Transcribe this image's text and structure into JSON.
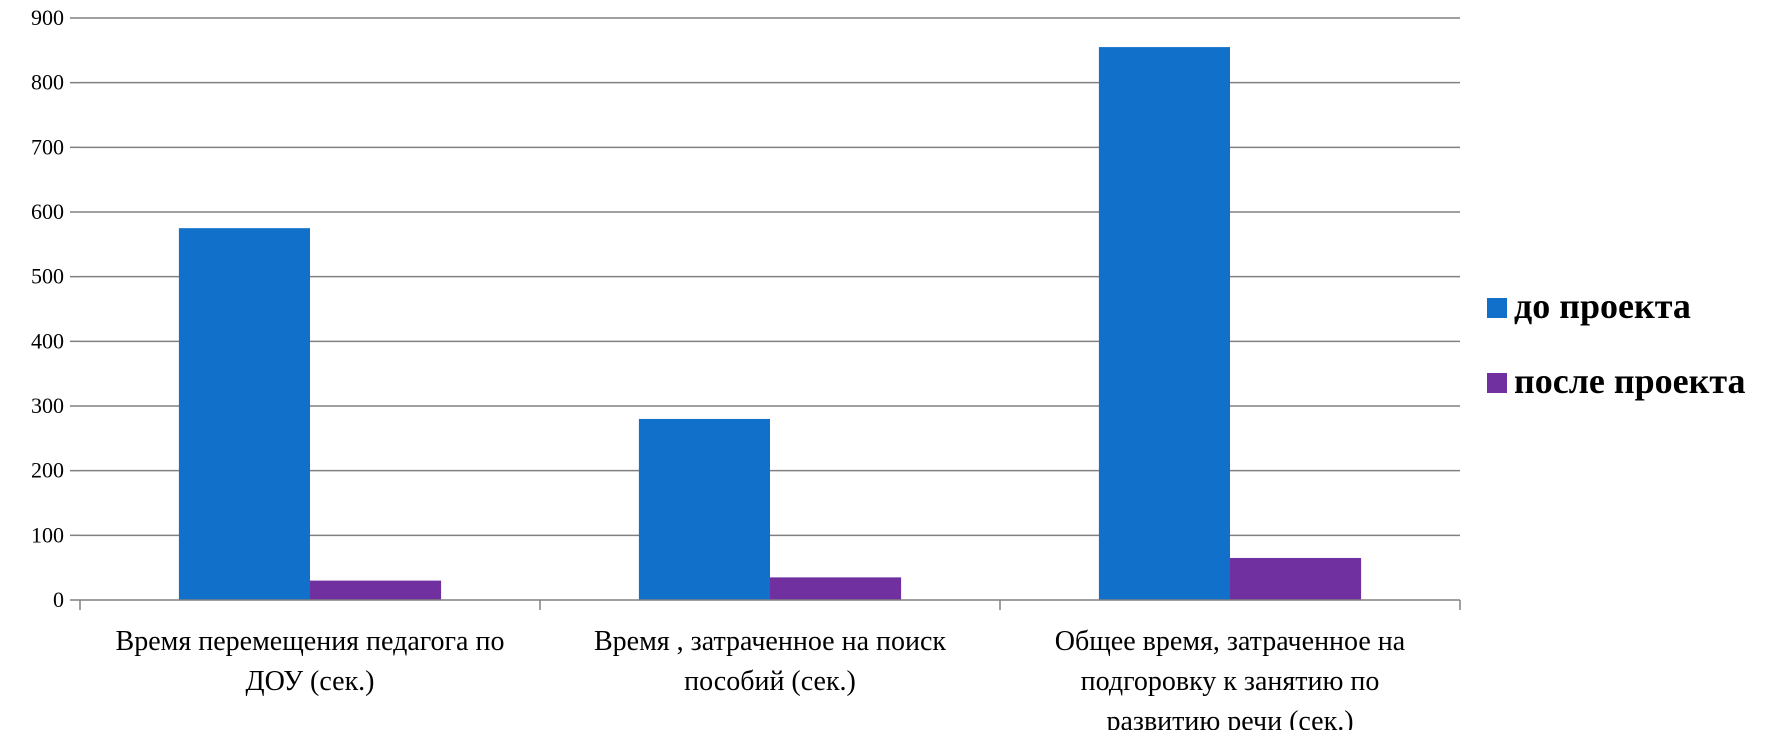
{
  "chart_data": {
    "type": "bar",
    "categories": [
      [
        "Время перемещения педагога по",
        "ДОУ (сек.)"
      ],
      [
        "Время , затраченное на поиск",
        "пособий (сек.)"
      ],
      [
        "Общее время, затраченное на",
        "подгоровку к занятию по",
        "развитию речи (сек.)"
      ]
    ],
    "series": [
      {
        "name": "до проекта",
        "values": [
          575,
          280,
          855
        ],
        "color": "#1170C9"
      },
      {
        "name": "после проекта",
        "values": [
          30,
          35,
          65
        ],
        "color": "#7030A0"
      }
    ],
    "ylim": [
      0,
      900
    ],
    "yticks": [
      0,
      100,
      200,
      300,
      400,
      500,
      600,
      700,
      800,
      900
    ],
    "ytick_labels": [
      "0",
      "100",
      "200",
      "300",
      "400",
      "500",
      "600",
      "700",
      "800",
      "900"
    ],
    "grid": true,
    "legend_position": "right"
  }
}
